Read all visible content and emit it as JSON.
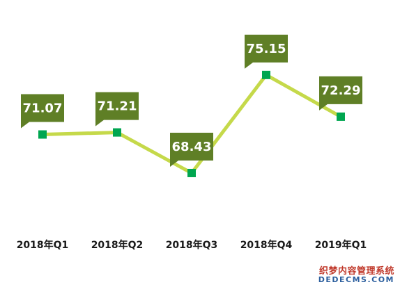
{
  "chart_data": {
    "type": "line",
    "categories": [
      "2018年Q1",
      "2018年Q2",
      "2018年Q3",
      "2018年Q4",
      "2019年Q1"
    ],
    "values": [
      71.07,
      71.21,
      68.43,
      75.15,
      72.29
    ],
    "data_labels": [
      "71.07",
      "71.21",
      "68.43",
      "75.15",
      "72.29"
    ],
    "title": "",
    "xlabel": "",
    "ylabel": "",
    "grid": false,
    "legend": "none",
    "colors": {
      "line": "#c5d94a",
      "marker": "#00a650",
      "label_box": "#5f7f26",
      "label_text": "#ffffff",
      "category_text": "#1a1a1a"
    }
  },
  "watermark": {
    "line1": "织梦内容管理系统",
    "line2": "DEDECMS.COM"
  }
}
